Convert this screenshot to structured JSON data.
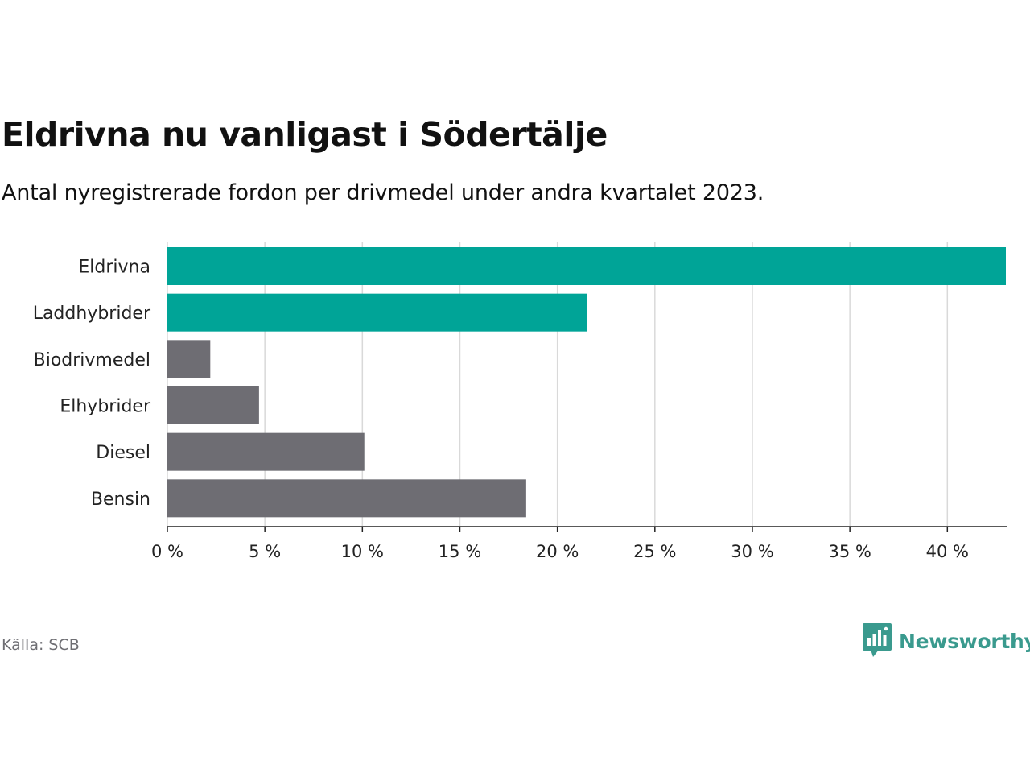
{
  "title": "Eldrivna nu vanligast i Södertälje",
  "subtitle": "Antal nyregistrerade fordon per drivmedel under andra kvartalet 2023.",
  "source": "Källa: SCB",
  "brand": {
    "name": "Newsworthy",
    "color": "#3a9a8e",
    "icon": "newsworthy-logo-icon"
  },
  "colors": {
    "highlight": "#00a497",
    "default": "#6e6d73",
    "grid": "#d9d9d9",
    "axis": "#222222",
    "label": "#222222"
  },
  "chart_data": {
    "type": "bar",
    "orientation": "horizontal",
    "title": "Eldrivna nu vanligast i Södertälje",
    "xlabel": "",
    "ylabel": "",
    "xlim": [
      0,
      43
    ],
    "grid": true,
    "categories": [
      "Eldrivna",
      "Laddhybrider",
      "Biodrivmedel",
      "Elhybrider",
      "Diesel",
      "Bensin"
    ],
    "values": [
      43.1,
      21.5,
      2.2,
      4.7,
      10.1,
      18.4
    ],
    "highlighted": [
      true,
      true,
      false,
      false,
      false,
      false
    ],
    "ticks": [
      0,
      5,
      10,
      15,
      20,
      25,
      30,
      35,
      40
    ],
    "tick_labels": [
      "0 %",
      "5 %",
      "10 %",
      "15 %",
      "20 %",
      "25 %",
      "30 %",
      "35 %",
      "40 %"
    ]
  }
}
